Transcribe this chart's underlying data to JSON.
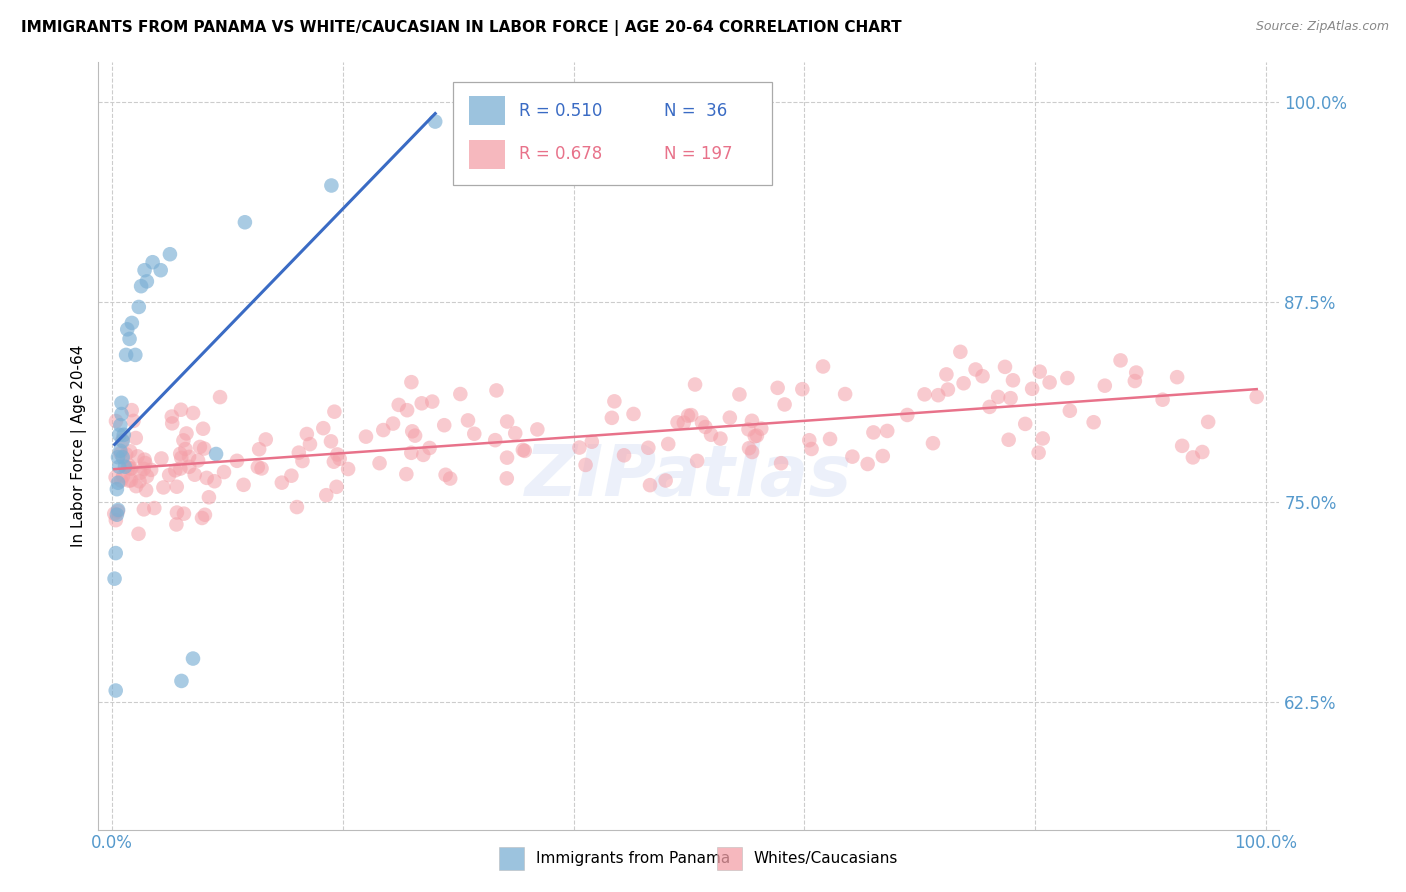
{
  "title": "IMMIGRANTS FROM PANAMA VS WHITE/CAUCASIAN IN LABOR FORCE | AGE 20-64 CORRELATION CHART",
  "source": "Source: ZipAtlas.com",
  "ylabel": "In Labor Force | Age 20-64",
  "y_ticks": [
    0.625,
    0.75,
    0.875,
    1.0
  ],
  "y_tick_labels": [
    "62.5%",
    "75.0%",
    "87.5%",
    "100.0%"
  ],
  "panama_R": 0.51,
  "panama_N": 36,
  "white_R": 0.678,
  "white_N": 197,
  "legend_label_1": "Immigrants from Panama",
  "legend_label_2": "Whites/Caucasians",
  "blue_color": "#7BAFD4",
  "pink_color": "#F4A0A8",
  "blue_line_color": "#3A6BC4",
  "pink_line_color": "#E8728A",
  "watermark": "ZIPatlas",
  "bg_color": "#FFFFFF",
  "grid_color": "#CCCCCC",
  "axis_label_color": "#5599CC",
  "ylim": [
    0.545,
    1.025
  ],
  "xlim": [
    -0.012,
    1.012
  ]
}
